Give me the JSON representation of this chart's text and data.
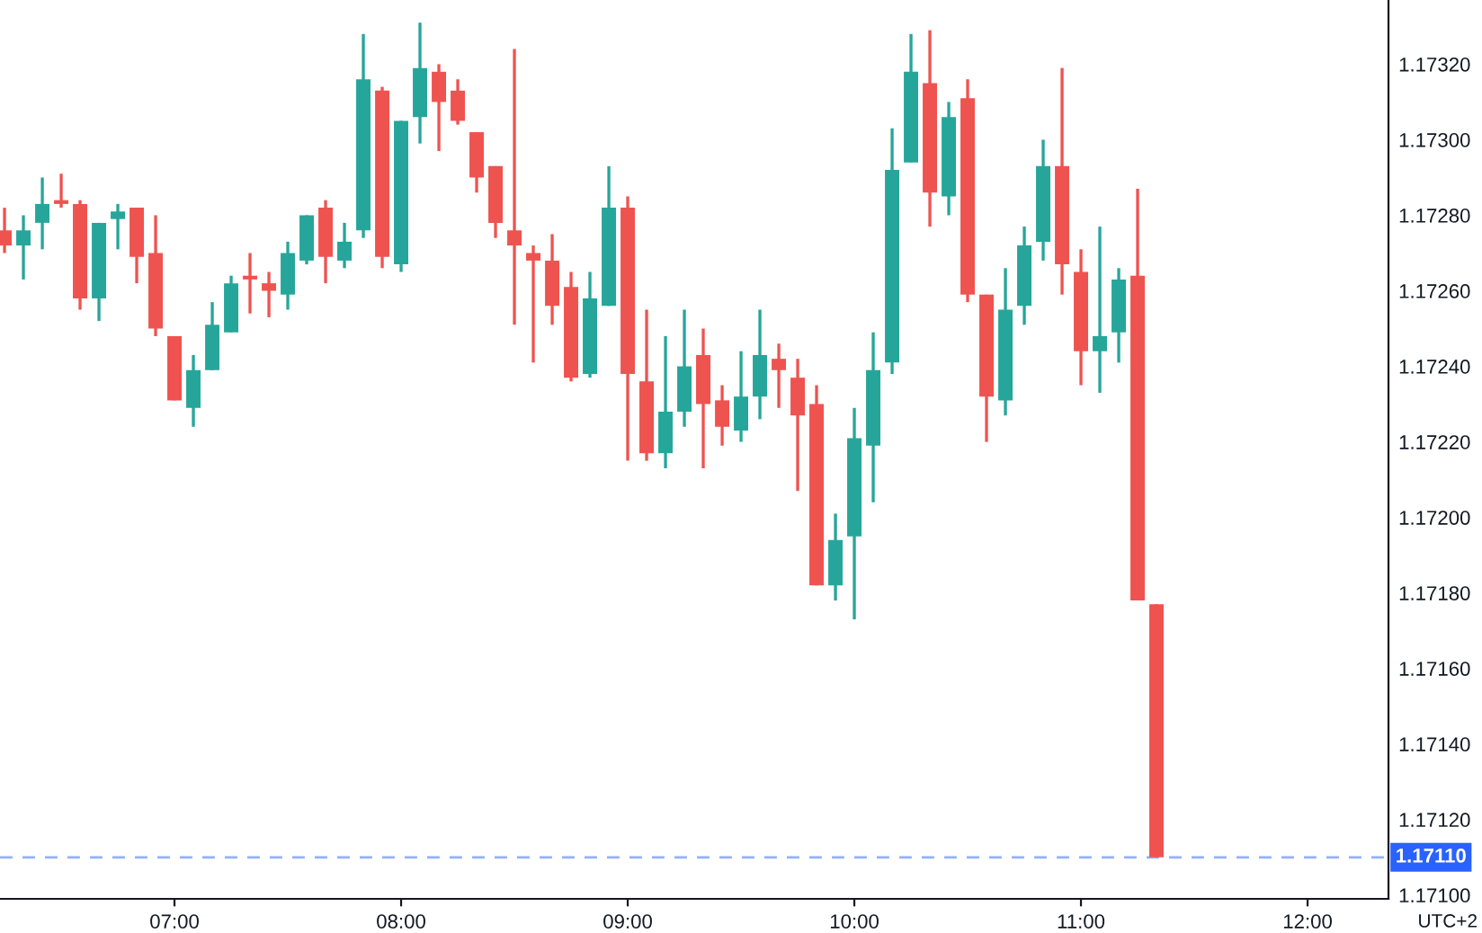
{
  "chart_data": {
    "type": "candlestick",
    "x": [
      6.25,
      6.3333,
      6.4167,
      6.5,
      6.5833,
      6.6667,
      6.75,
      6.8333,
      6.9167,
      7,
      7.0833,
      7.1667,
      7.25,
      7.3333,
      7.4167,
      7.5,
      7.5833,
      7.6667,
      7.75,
      7.8333,
      7.9167,
      8,
      8.0833,
      8.1667,
      8.25,
      8.3333,
      8.4167,
      8.5,
      8.5833,
      8.6667,
      8.75,
      8.8333,
      8.9167,
      9,
      9.0833,
      9.1667,
      9.25,
      9.3333,
      9.4167,
      9.5,
      9.5833,
      9.6667,
      9.75,
      9.8333,
      9.9167,
      10,
      10.0833,
      10.1667,
      10.25,
      10.3333,
      10.4167,
      10.5,
      10.5833,
      10.6667,
      10.75,
      10.8333,
      10.9167,
      11,
      11.0833,
      11.1667,
      11.25,
      11.3333
    ],
    "ohlc": [
      [
        1.17276,
        1.17282,
        1.1727,
        1.17272
      ],
      [
        1.17272,
        1.1728,
        1.17263,
        1.17276
      ],
      [
        1.17278,
        1.1729,
        1.17271,
        1.17283
      ],
      [
        1.17284,
        1.17291,
        1.17282,
        1.17283
      ],
      [
        1.17283,
        1.17284,
        1.17255,
        1.17258
      ],
      [
        1.17258,
        1.17278,
        1.17252,
        1.17278
      ],
      [
        1.17279,
        1.17283,
        1.17271,
        1.17281
      ],
      [
        1.17282,
        1.17282,
        1.17262,
        1.17269
      ],
      [
        1.1727,
        1.1728,
        1.17248,
        1.1725
      ],
      [
        1.17248,
        1.17248,
        1.17231,
        1.17231
      ],
      [
        1.17229,
        1.17243,
        1.17224,
        1.17239
      ],
      [
        1.17239,
        1.17257,
        1.17239,
        1.17251
      ],
      [
        1.17249,
        1.17264,
        1.17249,
        1.17262
      ],
      [
        1.17264,
        1.1727,
        1.17254,
        1.17263
      ],
      [
        1.17262,
        1.17265,
        1.17253,
        1.1726
      ],
      [
        1.17259,
        1.17273,
        1.17255,
        1.1727
      ],
      [
        1.17268,
        1.1728,
        1.17267,
        1.1728
      ],
      [
        1.17282,
        1.17284,
        1.17262,
        1.17269
      ],
      [
        1.17268,
        1.17278,
        1.17266,
        1.17273
      ],
      [
        1.17276,
        1.17328,
        1.17274,
        1.17316
      ],
      [
        1.17313,
        1.17314,
        1.17266,
        1.17269
      ],
      [
        1.17267,
        1.17305,
        1.17265,
        1.17305
      ],
      [
        1.17306,
        1.17331,
        1.17299,
        1.17319
      ],
      [
        1.17318,
        1.1732,
        1.17297,
        1.1731
      ],
      [
        1.17313,
        1.17316,
        1.17304,
        1.17305
      ],
      [
        1.17302,
        1.17302,
        1.17286,
        1.1729
      ],
      [
        1.17293,
        1.17293,
        1.17274,
        1.17278
      ],
      [
        1.17276,
        1.17324,
        1.17251,
        1.17272
      ],
      [
        1.1727,
        1.17272,
        1.17241,
        1.17268
      ],
      [
        1.17268,
        1.17275,
        1.17251,
        1.17256
      ],
      [
        1.17261,
        1.17265,
        1.17236,
        1.17237
      ],
      [
        1.17238,
        1.17265,
        1.17237,
        1.17258
      ],
      [
        1.17256,
        1.17293,
        1.17256,
        1.17282
      ],
      [
        1.17282,
        1.17285,
        1.17215,
        1.17238
      ],
      [
        1.17236,
        1.17255,
        1.17215,
        1.17217
      ],
      [
        1.17217,
        1.17248,
        1.17213,
        1.17228
      ],
      [
        1.17228,
        1.17255,
        1.17224,
        1.1724
      ],
      [
        1.17243,
        1.1725,
        1.17213,
        1.1723
      ],
      [
        1.17231,
        1.17235,
        1.17219,
        1.17224
      ],
      [
        1.17223,
        1.17244,
        1.1722,
        1.17232
      ],
      [
        1.17232,
        1.17255,
        1.17226,
        1.17243
      ],
      [
        1.17242,
        1.17246,
        1.17229,
        1.17239
      ],
      [
        1.17237,
        1.17242,
        1.17207,
        1.17227
      ],
      [
        1.1723,
        1.17235,
        1.17182,
        1.17182
      ],
      [
        1.17182,
        1.17201,
        1.17178,
        1.17194
      ],
      [
        1.17195,
        1.17229,
        1.17173,
        1.17221
      ],
      [
        1.17219,
        1.17249,
        1.17204,
        1.17239
      ],
      [
        1.17241,
        1.17303,
        1.17238,
        1.17292
      ],
      [
        1.17294,
        1.17328,
        1.17294,
        1.17318
      ],
      [
        1.17315,
        1.17329,
        1.17277,
        1.17286
      ],
      [
        1.17285,
        1.1731,
        1.1728,
        1.17306
      ],
      [
        1.17311,
        1.17316,
        1.17257,
        1.17259
      ],
      [
        1.17259,
        1.17259,
        1.1722,
        1.17232
      ],
      [
        1.17231,
        1.17266,
        1.17227,
        1.17255
      ],
      [
        1.17256,
        1.17277,
        1.17251,
        1.17272
      ],
      [
        1.17273,
        1.173,
        1.17268,
        1.17293
      ],
      [
        1.17293,
        1.17319,
        1.17259,
        1.17267
      ],
      [
        1.17265,
        1.17271,
        1.17235,
        1.17244
      ],
      [
        1.17244,
        1.17277,
        1.17233,
        1.17248
      ],
      [
        1.17249,
        1.17266,
        1.17241,
        1.17263
      ],
      [
        1.17264,
        1.17287,
        1.17178,
        1.17178
      ],
      [
        1.17177,
        1.17177,
        1.1711,
        1.1711
      ]
    ],
    "colors": [
      "#ef5350",
      "#26a69a",
      "#26a69a",
      "#ef5350",
      "#ef5350",
      "#26a69a",
      "#26a69a",
      "#ef5350",
      "#ef5350",
      "#ef5350",
      "#26a69a",
      "#26a69a",
      "#26a69a",
      "#ef5350",
      "#ef5350",
      "#26a69a",
      "#26a69a",
      "#ef5350",
      "#26a69a",
      "#26a69a",
      "#ef5350",
      "#26a69a",
      "#26a69a",
      "#ef5350",
      "#ef5350",
      "#ef5350",
      "#ef5350",
      "#ef5350",
      "#ef5350",
      "#ef5350",
      "#ef5350",
      "#26a69a",
      "#26a69a",
      "#ef5350",
      "#ef5350",
      "#26a69a",
      "#26a69a",
      "#ef5350",
      "#ef5350",
      "#26a69a",
      "#26a69a",
      "#ef5350",
      "#ef5350",
      "#ef5350",
      "#26a69a",
      "#26a69a",
      "#26a69a",
      "#26a69a",
      "#26a69a",
      "#ef5350",
      "#26a69a",
      "#ef5350",
      "#ef5350",
      "#26a69a",
      "#26a69a",
      "#26a69a",
      "#ef5350",
      "#ef5350",
      "#26a69a",
      "#26a69a",
      "#ef5350",
      "#ef5350"
    ],
    "xlim": [
      6.23,
      12.357
    ],
    "xticks": [
      {
        "value": 7,
        "label": "07:00"
      },
      {
        "value": 8,
        "label": "08:00"
      },
      {
        "value": 9,
        "label": "09:00"
      },
      {
        "value": 10,
        "label": "10:00"
      },
      {
        "value": 11,
        "label": "11:00"
      },
      {
        "value": 12,
        "label": "12:00"
      }
    ],
    "ylim": [
      1.17099,
      1.17337
    ],
    "yticks": [
      {
        "value": 1.171,
        "label": "1.17100"
      },
      {
        "value": 1.1712,
        "label": "1.17120"
      },
      {
        "value": 1.1714,
        "label": "1.17140"
      },
      {
        "value": 1.1716,
        "label": "1.17160"
      },
      {
        "value": 1.1718,
        "label": "1.17180"
      },
      {
        "value": 1.172,
        "label": "1.17200"
      },
      {
        "value": 1.1722,
        "label": "1.17220"
      },
      {
        "value": 1.1724,
        "label": "1.17240"
      },
      {
        "value": 1.1726,
        "label": "1.17260"
      },
      {
        "value": 1.1728,
        "label": "1.17280"
      },
      {
        "value": 1.173,
        "label": "1.17300"
      },
      {
        "value": 1.1732,
        "label": "1.17320"
      }
    ],
    "ref_lines": [
      {
        "axis": "y",
        "value": 1.1711,
        "label": "1.17110",
        "color": "#2962ff",
        "line_style": "dashed"
      }
    ],
    "annotations": [
      "UTC+2"
    ],
    "grid": false
  }
}
